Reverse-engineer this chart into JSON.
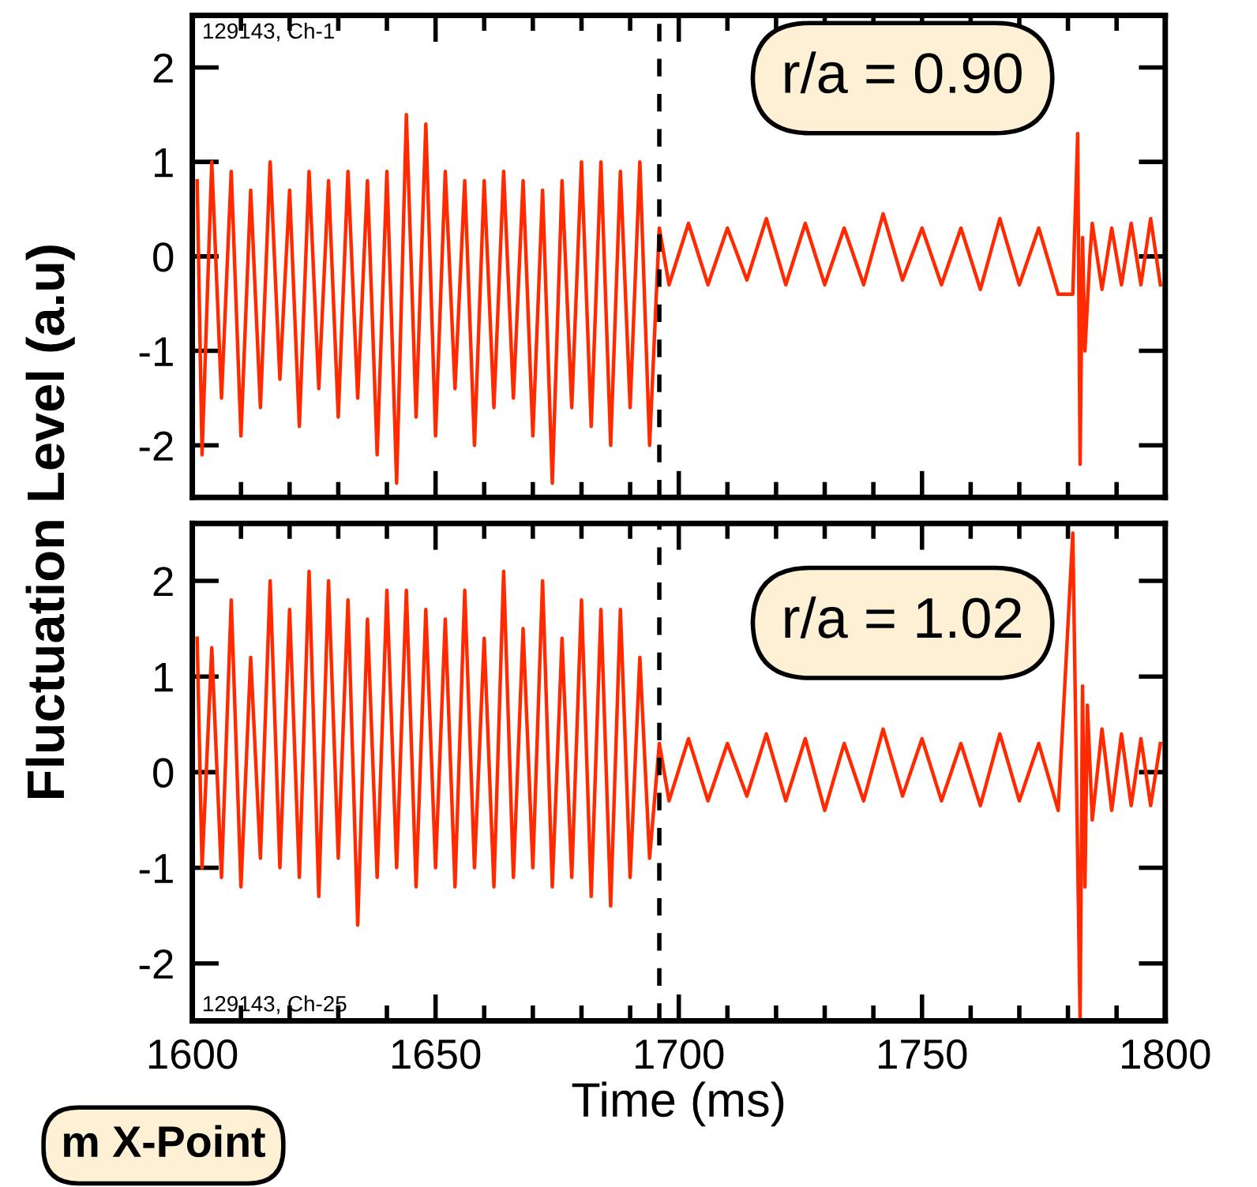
{
  "chart_data": [
    {
      "type": "line",
      "ylabel": "Fluctuation Level (a.u)",
      "annotations": [
        "129143, Ch-1",
        "r/a = 0.90"
      ],
      "x": [
        1601,
        1602,
        1604,
        1606,
        1608,
        1610,
        1612,
        1614,
        1616,
        1618,
        1620,
        1622,
        1624,
        1626,
        1628,
        1630,
        1632,
        1634,
        1636,
        1638,
        1640,
        1642,
        1644,
        1646,
        1648,
        1650,
        1652,
        1654,
        1656,
        1658,
        1660,
        1662,
        1664,
        1666,
        1668,
        1670,
        1672,
        1674,
        1676,
        1678,
        1680,
        1682,
        1684,
        1686,
        1688,
        1690,
        1692,
        1694,
        1696,
        1698,
        1702,
        1706,
        1710,
        1714,
        1718,
        1722,
        1726,
        1730,
        1734,
        1738,
        1742,
        1746,
        1750,
        1754,
        1758,
        1762,
        1766,
        1770,
        1774,
        1778,
        1781,
        1782,
        1782.5,
        1783,
        1783.5,
        1784.5,
        1785,
        1787,
        1789,
        1791,
        1793,
        1795,
        1797,
        1799
      ],
      "series": [
        {
          "color": "#ff2a00",
          "values": [
            0.8,
            -2.1,
            1.0,
            -1.5,
            0.9,
            -1.9,
            0.7,
            -1.6,
            1.0,
            -1.3,
            0.7,
            -1.8,
            0.9,
            -1.4,
            0.8,
            -1.7,
            0.9,
            -1.5,
            0.8,
            -2.1,
            0.9,
            -2.4,
            1.5,
            -1.7,
            1.4,
            -1.9,
            0.9,
            -1.4,
            0.8,
            -2.0,
            0.8,
            -1.6,
            0.9,
            -1.5,
            0.8,
            -1.9,
            0.7,
            -2.4,
            0.8,
            -1.6,
            1.0,
            -1.8,
            1.0,
            -2.0,
            0.9,
            -1.6,
            1.0,
            -2.0,
            0.3,
            -0.3,
            0.35,
            -0.3,
            0.3,
            -0.25,
            0.4,
            -0.3,
            0.35,
            -0.3,
            0.3,
            -0.3,
            0.45,
            -0.25,
            0.3,
            -0.3,
            0.3,
            -0.35,
            0.4,
            -0.3,
            0.3,
            -0.4,
            -0.4,
            1.3,
            -2.2,
            0.2,
            -1.0,
            0.0,
            0.35,
            -0.35,
            0.3,
            -0.3,
            0.35,
            -0.3,
            0.4,
            -0.3
          ]
        }
      ],
      "xlim": [
        1600,
        1800
      ],
      "ylim": [
        -2.55,
        2.55
      ],
      "yticks": [
        -2,
        -1,
        0,
        1,
        2
      ],
      "xticks": [
        1600,
        {
          "value": 1610,
          "label": null
        },
        {
          "value": 1620,
          "label": null
        },
        {
          "value": 1630,
          "label": null
        },
        {
          "value": 1640,
          "label": null
        },
        1650,
        {
          "value": 1660,
          "label": null
        },
        {
          "value": 1670,
          "label": null
        },
        {
          "value": 1680,
          "label": null
        },
        {
          "value": 1690,
          "label": null
        },
        1700,
        {
          "value": 1710,
          "label": null
        },
        {
          "value": 1720,
          "label": null
        },
        {
          "value": 1730,
          "label": null
        },
        {
          "value": 1740,
          "label": null
        },
        1750,
        {
          "value": 1760,
          "label": null
        },
        {
          "value": 1770,
          "label": null
        },
        {
          "value": 1780,
          "label": null
        },
        {
          "value": 1790,
          "label": null
        },
        1800
      ],
      "tick_labels": "y",
      "grid": false,
      "legend": false,
      "ref_lines": [
        {
          "axis": "x",
          "value": 1696,
          "color": "#000000",
          "line_style": "dashed"
        }
      ]
    },
    {
      "type": "line",
      "xlabel": "Time (ms)",
      "annotations": [
        "129143, Ch-25",
        "r/a = 1.02",
        "m X-Point"
      ],
      "x": [
        1601,
        1602,
        1604,
        1606,
        1608,
        1610,
        1612,
        1614,
        1616,
        1618,
        1620,
        1622,
        1624,
        1626,
        1628,
        1630,
        1632,
        1634,
        1636,
        1638,
        1640,
        1642,
        1644,
        1646,
        1648,
        1650,
        1652,
        1654,
        1656,
        1658,
        1660,
        1662,
        1664,
        1666,
        1668,
        1670,
        1672,
        1674,
        1676,
        1678,
        1680,
        1682,
        1684,
        1686,
        1688,
        1690,
        1692,
        1694,
        1696,
        1698,
        1702,
        1706,
        1710,
        1714,
        1718,
        1722,
        1726,
        1730,
        1734,
        1738,
        1742,
        1746,
        1750,
        1754,
        1758,
        1762,
        1766,
        1770,
        1774,
        1778,
        1781,
        1782.5,
        1783,
        1783.5,
        1784,
        1785,
        1787,
        1789,
        1791,
        1793,
        1795,
        1797,
        1799
      ],
      "series": [
        {
          "color": "#ff2a00",
          "values": [
            1.4,
            -1.0,
            1.3,
            -1.1,
            1.8,
            -1.2,
            1.2,
            -0.9,
            2.0,
            -1.0,
            1.7,
            -1.1,
            2.1,
            -1.3,
            2.0,
            -0.9,
            1.8,
            -1.6,
            1.6,
            -1.1,
            1.9,
            -1.0,
            1.9,
            -1.2,
            1.7,
            -1.0,
            1.6,
            -1.2,
            1.9,
            -1.0,
            1.4,
            -1.2,
            2.1,
            -1.1,
            1.5,
            -1.0,
            2.0,
            -1.2,
            1.4,
            -1.1,
            1.8,
            -1.3,
            1.7,
            -1.4,
            1.7,
            -1.1,
            1.2,
            -0.9,
            0.3,
            -0.3,
            0.35,
            -0.3,
            0.3,
            -0.25,
            0.4,
            -0.3,
            0.35,
            -0.4,
            0.3,
            -0.3,
            0.45,
            -0.25,
            0.35,
            -0.3,
            0.3,
            -0.35,
            0.4,
            -0.3,
            0.3,
            -0.4,
            2.5,
            -2.6,
            0.9,
            -1.2,
            0.7,
            -0.5,
            0.45,
            -0.4,
            0.4,
            -0.35,
            0.35,
            -0.35,
            0.3
          ]
        }
      ],
      "xlim": [
        1600,
        1800
      ],
      "ylim": [
        -2.6,
        2.6
      ],
      "yticks": [
        -2,
        -1,
        0,
        1,
        2
      ],
      "xticks": [
        1600,
        {
          "value": 1610,
          "label": null
        },
        {
          "value": 1620,
          "label": null
        },
        {
          "value": 1630,
          "label": null
        },
        {
          "value": 1640,
          "label": null
        },
        1650,
        {
          "value": 1660,
          "label": null
        },
        {
          "value": 1670,
          "label": null
        },
        {
          "value": 1680,
          "label": null
        },
        {
          "value": 1690,
          "label": null
        },
        1700,
        {
          "value": 1710,
          "label": null
        },
        {
          "value": 1720,
          "label": null
        },
        {
          "value": 1730,
          "label": null
        },
        {
          "value": 1740,
          "label": null
        },
        1750,
        {
          "value": 1760,
          "label": null
        },
        {
          "value": 1770,
          "label": null
        },
        {
          "value": 1780,
          "label": null
        },
        {
          "value": 1790,
          "label": null
        },
        1800
      ],
      "grid": false,
      "legend": false,
      "ref_lines": [
        {
          "axis": "x",
          "value": 1696,
          "color": "#000000",
          "line_style": "dashed"
        }
      ]
    }
  ]
}
